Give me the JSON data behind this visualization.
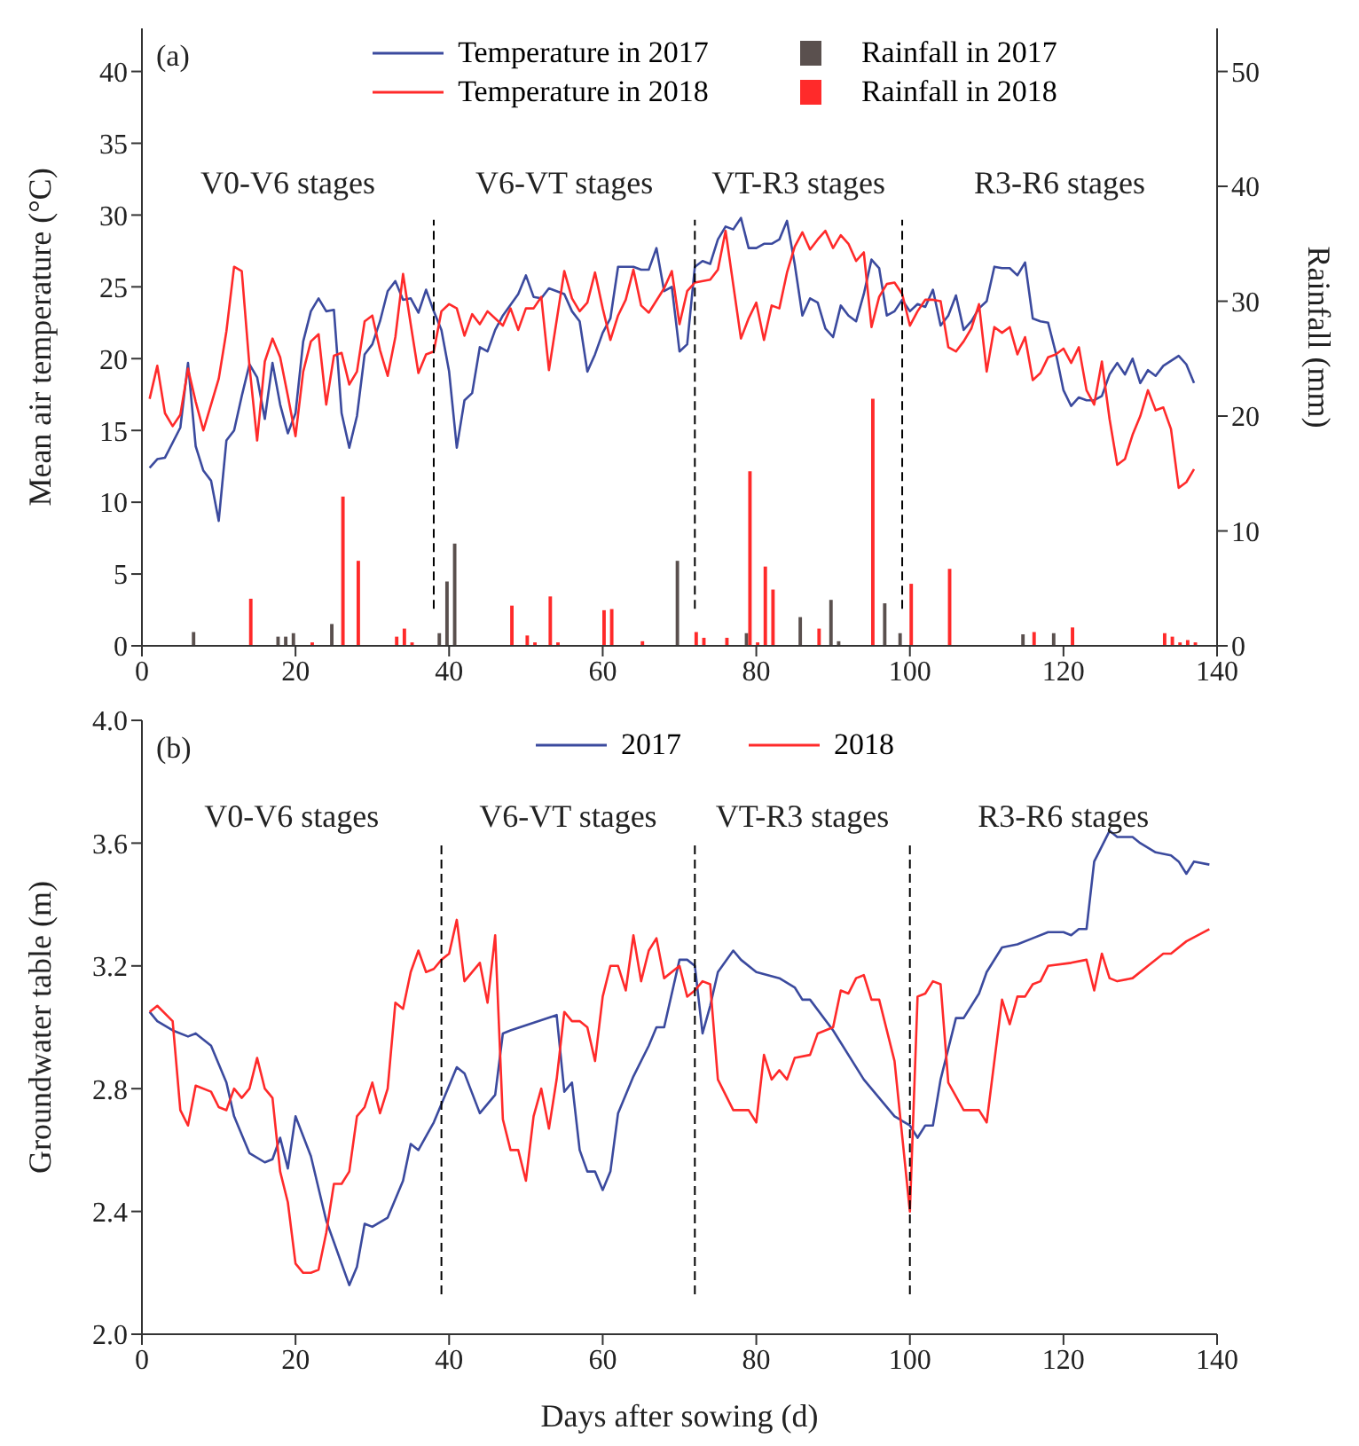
{
  "chart_data": [
    {
      "type": "line",
      "ylabel": "Mean air temperature (°C)",
      "y2label": "Rainfall (mm)",
      "xlim": [
        0,
        140
      ],
      "xticks": [
        0,
        20,
        40,
        60,
        80,
        100,
        120,
        140
      ],
      "ylim": [
        0,
        43
      ],
      "yticks": [
        0,
        5,
        10,
        15,
        20,
        25,
        30,
        35,
        40
      ],
      "y2lim": [
        0,
        53.75
      ],
      "y2ticks": [
        0,
        10,
        20,
        30,
        40,
        50
      ],
      "legend": "top",
      "annotations": [
        "(a)",
        "V0-V6 stages",
        "V6-VT stages",
        "VT-R3 stages",
        "R3-R6 stages"
      ],
      "ref_lines": [
        {
          "axis": "x",
          "value": 38,
          "color": "#000000",
          "line_style": "dashed"
        },
        {
          "axis": "x",
          "value": 72,
          "color": "#000000",
          "line_style": "dashed"
        },
        {
          "axis": "x",
          "value": 99,
          "color": "#000000",
          "line_style": "dashed"
        }
      ],
      "series": [
        {
          "name": "Temperature in 2017",
          "color": "#3b4a9e",
          "x": [
            1,
            2,
            3,
            5,
            6,
            7,
            8,
            9,
            10,
            11,
            12,
            13,
            14,
            15,
            16,
            17,
            18,
            19,
            20,
            21,
            22,
            23,
            24,
            25,
            26,
            27,
            28,
            29,
            30,
            31,
            32,
            33,
            34,
            35,
            36,
            37,
            38,
            39,
            40,
            41,
            42,
            43,
            44,
            45,
            46,
            47,
            49,
            50,
            51,
            52,
            53,
            55,
            56,
            57,
            58,
            59,
            60,
            61,
            62,
            64,
            65,
            66,
            67,
            68,
            69,
            70,
            71,
            72,
            73,
            74,
            75,
            76,
            77,
            78,
            79,
            80,
            81,
            82,
            83,
            84,
            85,
            86,
            87,
            88,
            89,
            90,
            91,
            92,
            93,
            94,
            95,
            96,
            97,
            98,
            99,
            100,
            101,
            102,
            103,
            104,
            105,
            106,
            107,
            108,
            109,
            110,
            111,
            112,
            113,
            114,
            115,
            116,
            117,
            118,
            119,
            120,
            121,
            122,
            123,
            124,
            125,
            126,
            127,
            128,
            129,
            130,
            131,
            132,
            133,
            135,
            136,
            137
          ],
          "values": [
            12.4,
            13.0,
            13.1,
            15.2,
            19.7,
            13.9,
            12.2,
            11.5,
            8.7,
            14.3,
            15.0,
            17.4,
            19.6,
            18.7,
            15.8,
            19.7,
            16.8,
            14.8,
            16.2,
            21.2,
            23.3,
            24.2,
            23.3,
            23.4,
            16.2,
            13.8,
            16.0,
            20.3,
            21.0,
            22.6,
            24.7,
            25.4,
            24.1,
            24.2,
            23.2,
            24.8,
            23.3,
            22.0,
            19.1,
            13.8,
            17.1,
            17.6,
            20.8,
            20.5,
            22.0,
            23.0,
            24.5,
            25.8,
            24.3,
            24.2,
            24.9,
            24.5,
            23.3,
            22.6,
            19.1,
            20.3,
            21.8,
            22.8,
            26.4,
            26.4,
            26.2,
            26.2,
            27.7,
            24.7,
            25.0,
            20.5,
            21.0,
            26.4,
            26.8,
            26.6,
            28.3,
            29.2,
            29.0,
            29.8,
            27.7,
            27.7,
            28.0,
            28.0,
            28.3,
            29.6,
            26.6,
            23.0,
            24.2,
            23.9,
            22.1,
            21.5,
            23.7,
            23.0,
            22.6,
            24.5,
            26.9,
            26.3,
            23.0,
            23.3,
            24.1,
            23.3,
            23.8,
            23.6,
            24.8,
            22.3,
            23.0,
            24.4,
            22.0,
            22.6,
            23.5,
            24.0,
            26.4,
            26.3,
            26.3,
            25.8,
            26.7,
            22.8,
            22.6,
            22.5,
            20.4,
            17.8,
            16.7,
            17.3,
            17.1,
            17.1,
            17.4,
            18.9,
            19.7,
            18.9,
            20.0,
            18.3,
            19.2,
            18.8,
            19.5,
            20.2,
            19.6,
            18.3
          ]
        },
        {
          "name": "Temperature in 2018",
          "color": "#ff2a2a",
          "x": [
            1,
            2,
            3,
            4,
            5,
            6,
            7,
            8,
            9,
            10,
            11,
            12,
            13,
            14,
            15,
            16,
            17,
            18,
            19,
            20,
            21,
            22,
            23,
            24,
            25,
            26,
            27,
            28,
            29,
            30,
            31,
            32,
            33,
            34,
            35,
            36,
            37,
            38,
            39,
            40,
            41,
            42,
            43,
            44,
            45,
            47,
            48,
            49,
            50,
            51,
            52,
            53,
            55,
            56,
            57,
            58,
            59,
            60,
            61,
            62,
            63,
            64,
            65,
            66,
            68,
            69,
            70,
            71,
            72,
            74,
            75,
            76,
            78,
            79,
            80,
            81,
            82,
            83,
            84,
            85,
            86,
            87,
            88,
            89,
            90,
            91,
            92,
            93,
            94,
            95,
            96,
            97,
            98,
            99,
            100,
            101,
            102,
            103,
            104,
            105,
            106,
            107,
            108,
            109,
            110,
            111,
            112,
            113,
            114,
            115,
            116,
            117,
            118,
            119,
            120,
            121,
            122,
            123,
            124,
            125,
            126,
            127,
            128,
            129,
            130,
            131,
            132,
            133,
            134,
            135,
            136,
            137
          ],
          "values": [
            17.2,
            19.5,
            16.2,
            15.3,
            16.1,
            19.3,
            17.0,
            15.0,
            16.8,
            18.6,
            21.9,
            26.4,
            26.1,
            19.5,
            14.3,
            19.8,
            21.4,
            20.1,
            17.4,
            14.6,
            19.1,
            21.2,
            21.7,
            16.8,
            20.2,
            20.4,
            18.2,
            19.1,
            22.6,
            23.0,
            20.6,
            18.8,
            21.5,
            25.9,
            22.4,
            19.0,
            20.3,
            20.5,
            23.3,
            23.8,
            23.5,
            21.6,
            23.1,
            22.4,
            23.3,
            22.3,
            23.5,
            22.0,
            23.5,
            23.5,
            24.3,
            19.2,
            26.1,
            24.2,
            23.3,
            23.9,
            26.0,
            23.5,
            21.3,
            23.0,
            24.1,
            26.2,
            23.7,
            23.2,
            24.9,
            26.1,
            22.4,
            24.7,
            25.3,
            25.5,
            26.2,
            28.9,
            21.4,
            22.8,
            23.9,
            21.3,
            23.7,
            23.5,
            26.0,
            27.8,
            28.8,
            27.6,
            28.3,
            28.9,
            27.7,
            28.6,
            28.0,
            26.8,
            27.4,
            22.2,
            24.3,
            25.2,
            25.3,
            24.5,
            22.3,
            23.3,
            24.1,
            24.1,
            24.0,
            20.8,
            20.5,
            21.2,
            22.1,
            23.8,
            19.1,
            22.2,
            21.8,
            22.2,
            20.3,
            21.5,
            18.5,
            19.0,
            20.1,
            20.3,
            20.7,
            19.7,
            20.8,
            17.8,
            16.8,
            19.8,
            15.8,
            12.6,
            13.0,
            14.7,
            16.0,
            17.8,
            16.4,
            16.6,
            15.1,
            11.0,
            11.4,
            12.3
          ]
        },
        {
          "name": "Rainfall in 2017",
          "type": "bar",
          "axis": "y2",
          "color": "#5a504e",
          "x": [
            7,
            18,
            19,
            20,
            25,
            39,
            40,
            41,
            70,
            79,
            86,
            90,
            91,
            97,
            99,
            115,
            119
          ],
          "values": [
            1.2,
            0.8,
            0.8,
            1.1,
            1.9,
            1.1,
            5.6,
            8.9,
            7.4,
            1.1,
            2.5,
            4.0,
            0.4,
            3.7,
            1.1,
            1.0,
            1.1
          ]
        },
        {
          "name": "Rainfall in 2018",
          "type": "bar",
          "axis": "y2",
          "color": "#ff2a2a",
          "x": [
            14,
            22,
            26,
            28,
            33,
            34,
            35,
            48,
            50,
            51,
            53,
            54,
            60,
            61,
            65,
            72,
            73,
            76,
            79,
            80,
            81,
            82,
            88,
            95,
            100,
            105,
            116,
            121,
            133,
            134,
            135,
            136,
            137
          ],
          "values": [
            4.1,
            0.3,
            13.0,
            7.4,
            0.8,
            1.5,
            0.3,
            3.5,
            0.9,
            0.3,
            4.3,
            0.3,
            3.1,
            3.2,
            0.4,
            1.2,
            0.7,
            0.7,
            15.2,
            0.3,
            6.9,
            4.9,
            1.5,
            21.5,
            5.4,
            6.7,
            1.2,
            1.6,
            1.1,
            0.8,
            0.3,
            0.5,
            0.3
          ]
        }
      ]
    },
    {
      "type": "line",
      "xlabel": "Days after sowing (d)",
      "ylabel": "Groundwater table (m)",
      "xlim": [
        0,
        140
      ],
      "xticks": [
        0,
        20,
        40,
        60,
        80,
        100,
        120,
        140
      ],
      "ylim": [
        2,
        4
      ],
      "yticks": [
        {
          "value": 2,
          "label": "2.0"
        },
        2.4,
        2.8,
        3.2,
        3.6,
        {
          "value": 4,
          "label": "4.0"
        }
      ],
      "legend": "top",
      "annotations": [
        "(b)",
        "V0-V6 stages",
        "V6-VT stages",
        "VT-R3 stages",
        "R3-R6 stages"
      ],
      "ref_lines": [
        {
          "axis": "x",
          "value": 39,
          "color": "#000000",
          "line_style": "dashed"
        },
        {
          "axis": "x",
          "value": 72,
          "color": "#000000",
          "line_style": "dashed"
        },
        {
          "axis": "x",
          "value": 100,
          "color": "#000000",
          "line_style": "dashed"
        }
      ],
      "series": [
        {
          "name": "2017",
          "color": "#3b4a9e",
          "x": [
            1,
            2,
            4,
            6,
            7,
            9,
            11,
            12,
            14,
            16,
            17,
            18,
            19,
            20,
            22,
            24,
            27,
            28,
            29,
            30,
            32,
            34,
            35,
            36,
            38,
            41,
            42,
            44,
            46,
            47,
            48,
            54,
            55,
            56,
            57,
            58,
            59,
            60,
            61,
            62,
            64,
            66,
            67,
            68,
            70,
            71,
            72,
            73,
            74,
            75,
            77,
            78,
            80,
            83,
            85,
            86,
            87,
            90,
            94,
            98,
            100,
            101,
            102,
            103,
            104,
            106,
            107,
            109,
            110,
            112,
            114,
            116,
            118,
            120,
            121,
            122,
            123,
            124,
            126,
            127,
            129,
            130,
            132,
            134,
            135,
            136,
            137,
            139
          ],
          "values": [
            3.05,
            3.02,
            2.99,
            2.97,
            2.98,
            2.94,
            2.82,
            2.71,
            2.59,
            2.56,
            2.57,
            2.64,
            2.54,
            2.71,
            2.58,
            2.37,
            2.16,
            2.22,
            2.36,
            2.35,
            2.38,
            2.5,
            2.62,
            2.6,
            2.69,
            2.87,
            2.85,
            2.72,
            2.78,
            2.98,
            2.99,
            3.04,
            2.79,
            2.82,
            2.6,
            2.53,
            2.53,
            2.47,
            2.53,
            2.72,
            2.84,
            2.94,
            3.0,
            3.0,
            3.22,
            3.22,
            3.2,
            2.98,
            3.07,
            3.18,
            3.25,
            3.22,
            3.18,
            3.16,
            3.13,
            3.09,
            3.09,
            2.99,
            2.83,
            2.71,
            2.68,
            2.64,
            2.68,
            2.68,
            2.83,
            3.03,
            3.03,
            3.11,
            3.18,
            3.26,
            3.27,
            3.29,
            3.31,
            3.31,
            3.3,
            3.32,
            3.32,
            3.54,
            3.64,
            3.62,
            3.62,
            3.6,
            3.57,
            3.56,
            3.54,
            3.5,
            3.54,
            3.53
          ]
        },
        {
          "name": "2018",
          "color": "#ff2a2a",
          "x": [
            1,
            2,
            4,
            5,
            6,
            7,
            9,
            10,
            11,
            12,
            13,
            14,
            15,
            16,
            17,
            18,
            19,
            20,
            21,
            22,
            23,
            24,
            25,
            26,
            27,
            28,
            29,
            30,
            31,
            32,
            33,
            34,
            35,
            36,
            37,
            38,
            39,
            40,
            41,
            42,
            44,
            45,
            46,
            47,
            48,
            49,
            50,
            51,
            52,
            53,
            54,
            55,
            56,
            57,
            58,
            59,
            60,
            61,
            62,
            63,
            64,
            65,
            66,
            67,
            68,
            70,
            71,
            72,
            73,
            74,
            75,
            77,
            79,
            80,
            81,
            82,
            83,
            84,
            85,
            87,
            88,
            90,
            91,
            92,
            93,
            94,
            95,
            96,
            98,
            100,
            101,
            102,
            103,
            104,
            105,
            107,
            109,
            110,
            112,
            113,
            114,
            115,
            116,
            117,
            118,
            121,
            123,
            124,
            125,
            126,
            127,
            129,
            131,
            133,
            134,
            136,
            139
          ],
          "values": [
            3.05,
            3.07,
            3.02,
            2.73,
            2.68,
            2.81,
            2.79,
            2.74,
            2.73,
            2.8,
            2.77,
            2.8,
            2.9,
            2.8,
            2.77,
            2.53,
            2.43,
            2.23,
            2.2,
            2.2,
            2.21,
            2.33,
            2.49,
            2.49,
            2.53,
            2.71,
            2.74,
            2.82,
            2.72,
            2.8,
            3.08,
            3.06,
            3.18,
            3.25,
            3.18,
            3.19,
            3.22,
            3.24,
            3.35,
            3.15,
            3.21,
            3.08,
            3.3,
            2.7,
            2.6,
            2.6,
            2.5,
            2.71,
            2.8,
            2.67,
            2.83,
            3.05,
            3.02,
            3.02,
            3.0,
            2.89,
            3.1,
            3.2,
            3.2,
            3.12,
            3.3,
            3.15,
            3.25,
            3.29,
            3.16,
            3.2,
            3.1,
            3.12,
            3.15,
            3.14,
            2.83,
            2.73,
            2.73,
            2.69,
            2.91,
            2.83,
            2.86,
            2.83,
            2.9,
            2.91,
            2.98,
            3.0,
            3.12,
            3.11,
            3.16,
            3.17,
            3.09,
            3.09,
            2.89,
            2.4,
            3.1,
            3.11,
            3.15,
            3.14,
            2.82,
            2.73,
            2.73,
            2.69,
            3.09,
            3.01,
            3.1,
            3.1,
            3.14,
            3.15,
            3.2,
            3.21,
            3.22,
            3.12,
            3.24,
            3.16,
            3.15,
            3.16,
            3.2,
            3.24,
            3.24,
            3.28,
            3.32
          ]
        }
      ]
    }
  ]
}
